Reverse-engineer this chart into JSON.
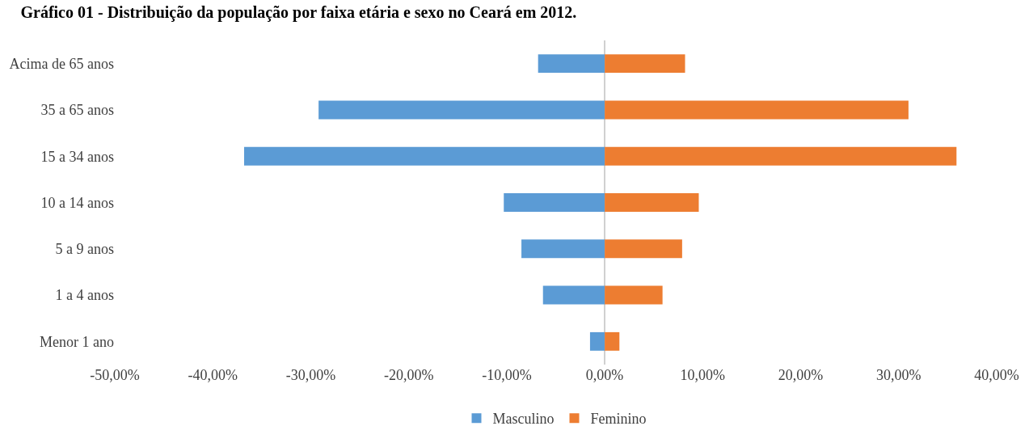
{
  "chart_data": {
    "type": "bar",
    "orientation": "horizontal",
    "title": "Gráfico 01 - Distribuição da população por faixa etária e sexo no Ceará em 2012.",
    "categories": [
      "Acima de 65 anos",
      "35 a 65 anos",
      "15 a 34 anos",
      "10 a 14 anos",
      "5 a 9 anos",
      "1 a 4 anos",
      "Menor 1 ano"
    ],
    "series": [
      {
        "name": "Masculino",
        "color": "#5b9bd5",
        "values": [
          -6.8,
          -29.2,
          -36.8,
          -10.3,
          -8.5,
          -6.3,
          -1.5
        ]
      },
      {
        "name": "Feminino",
        "color": "#ed7d31",
        "values": [
          8.2,
          31.0,
          35.9,
          9.6,
          7.9,
          5.9,
          1.5
        ]
      }
    ],
    "xlim": [
      -50,
      40
    ],
    "xticks": [
      {
        "value": -50,
        "label": "-50,00%"
      },
      {
        "value": -40,
        "label": "-40,00%"
      },
      {
        "value": -30,
        "label": "-30,00%"
      },
      {
        "value": -20,
        "label": "-20,00%"
      },
      {
        "value": -10,
        "label": "-10,00%"
      },
      {
        "value": 0,
        "label": "0,00%"
      },
      {
        "value": 10,
        "label": "10,00%"
      },
      {
        "value": 20,
        "label": "20,00%"
      },
      {
        "value": 30,
        "label": "30,00%"
      },
      {
        "value": 40,
        "label": "40,00%"
      }
    ],
    "stacked": true,
    "legend": "bottom"
  }
}
